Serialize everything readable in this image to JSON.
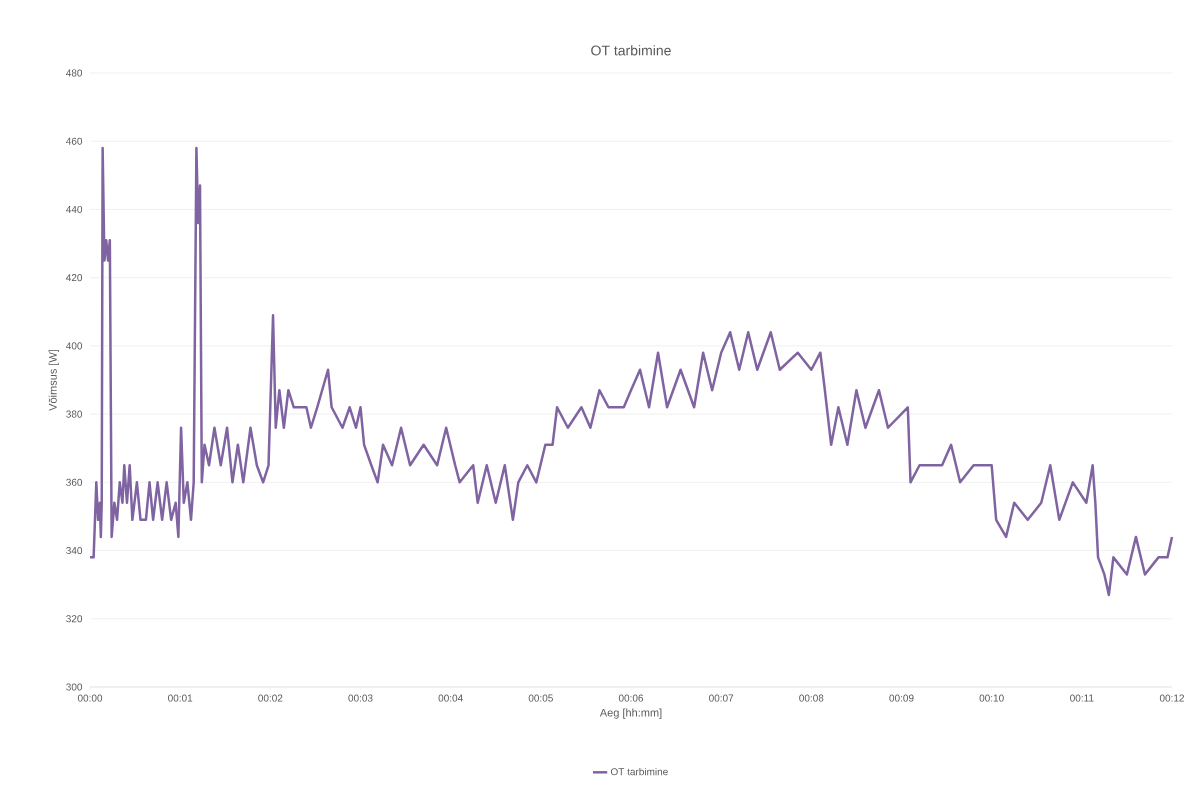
{
  "chart_data": {
    "type": "line",
    "title": "OT tarbimine",
    "xlabel": "Aeg [hh:mm]",
    "ylabel": "Võimsus [W]",
    "x": [
      0,
      0.04,
      0.07,
      0.09,
      0.11,
      0.12,
      0.13,
      0.14,
      0.16,
      0.18,
      0.2,
      0.22,
      0.24,
      0.27,
      0.3,
      0.33,
      0.36,
      0.38,
      0.41,
      0.44,
      0.47,
      0.52,
      0.56,
      0.62,
      0.66,
      0.7,
      0.75,
      0.8,
      0.85,
      0.9,
      0.95,
      0.98,
      1.01,
      1.04,
      1.08,
      1.12,
      1.15,
      1.18,
      1.2,
      1.22,
      1.24,
      1.27,
      1.32,
      1.38,
      1.45,
      1.52,
      1.58,
      1.64,
      1.7,
      1.78,
      1.85,
      1.92,
      1.98,
      2.03,
      2.06,
      2.1,
      2.15,
      2.2,
      2.26,
      2.4,
      2.45,
      2.52,
      2.64,
      2.68,
      2.8,
      2.88,
      2.95,
      3.0,
      3.04,
      3.12,
      3.19,
      3.25,
      3.35,
      3.45,
      3.55,
      3.7,
      3.85,
      3.95,
      4.05,
      4.1,
      4.25,
      4.3,
      4.4,
      4.5,
      4.6,
      4.69,
      4.75,
      4.85,
      4.95,
      5.05,
      5.13,
      5.18,
      5.3,
      5.45,
      5.55,
      5.65,
      5.75,
      5.92,
      6.0,
      6.1,
      6.2,
      6.3,
      6.4,
      6.55,
      6.7,
      6.8,
      6.9,
      7.0,
      7.1,
      7.2,
      7.3,
      7.4,
      7.55,
      7.65,
      7.85,
      8.0,
      8.1,
      8.15,
      8.22,
      8.3,
      8.4,
      8.5,
      8.6,
      8.75,
      8.85,
      9.07,
      9.1,
      9.2,
      9.45,
      9.55,
      9.65,
      9.8,
      10.0,
      10.05,
      10.16,
      10.25,
      10.4,
      10.55,
      10.65,
      10.75,
      10.9,
      11.05,
      11.12,
      11.15,
      11.18,
      11.25,
      11.3,
      11.35,
      11.5,
      11.6,
      11.7,
      11.85,
      11.95,
      12.0
    ],
    "series": [
      {
        "name": "OT tarbimine",
        "color": "#8064a2",
        "values": [
          338,
          338,
          360,
          349,
          354,
          344,
          354,
          458,
          425,
          431,
          425,
          431,
          344,
          354,
          349,
          360,
          354,
          365,
          354,
          365,
          349,
          360,
          349,
          349,
          360,
          349,
          360,
          349,
          360,
          349,
          354,
          344,
          376,
          354,
          360,
          349,
          360,
          458,
          436,
          447,
          360,
          371,
          365,
          376,
          365,
          376,
          360,
          371,
          360,
          376,
          365,
          360,
          365,
          409,
          376,
          387,
          376,
          387,
          382,
          382,
          376,
          382,
          393,
          382,
          376,
          382,
          376,
          382,
          371,
          365,
          360,
          371,
          365,
          376,
          365,
          371,
          365,
          376,
          365,
          360,
          365,
          354,
          365,
          354,
          365,
          349,
          360,
          365,
          360,
          371,
          371,
          382,
          376,
          382,
          376,
          387,
          382,
          382,
          387,
          393,
          382,
          398,
          382,
          393,
          382,
          398,
          387,
          398,
          404,
          393,
          404,
          393,
          404,
          393,
          398,
          393,
          398,
          387,
          371,
          382,
          371,
          387,
          376,
          387,
          376,
          382,
          360,
          365,
          365,
          371,
          360,
          365,
          365,
          349,
          344,
          354,
          349,
          354,
          365,
          349,
          360,
          354,
          365,
          354,
          338,
          333,
          327,
          338,
          333,
          344,
          333,
          338,
          338,
          344
        ]
      }
    ],
    "xlim": [
      0,
      12
    ],
    "xticks": [
      {
        "value": 0,
        "label": "00:00"
      },
      {
        "value": 1,
        "label": "00:01"
      },
      {
        "value": 2,
        "label": "00:02"
      },
      {
        "value": 3,
        "label": "00:03"
      },
      {
        "value": 4,
        "label": "00:04"
      },
      {
        "value": 5,
        "label": "00:05"
      },
      {
        "value": 6,
        "label": "00:06"
      },
      {
        "value": 7,
        "label": "00:07"
      },
      {
        "value": 8,
        "label": "00:08"
      },
      {
        "value": 9,
        "label": "00:09"
      },
      {
        "value": 10,
        "label": "00:10"
      },
      {
        "value": 11,
        "label": "00:11"
      },
      {
        "value": 12,
        "label": "00:12"
      }
    ],
    "ylim": [
      300,
      480
    ],
    "yticks": [
      300,
      320,
      340,
      360,
      380,
      400,
      420,
      440,
      460,
      480
    ],
    "grid": "y",
    "legend": "bottom",
    "marker": "none",
    "line_style": "solid"
  }
}
